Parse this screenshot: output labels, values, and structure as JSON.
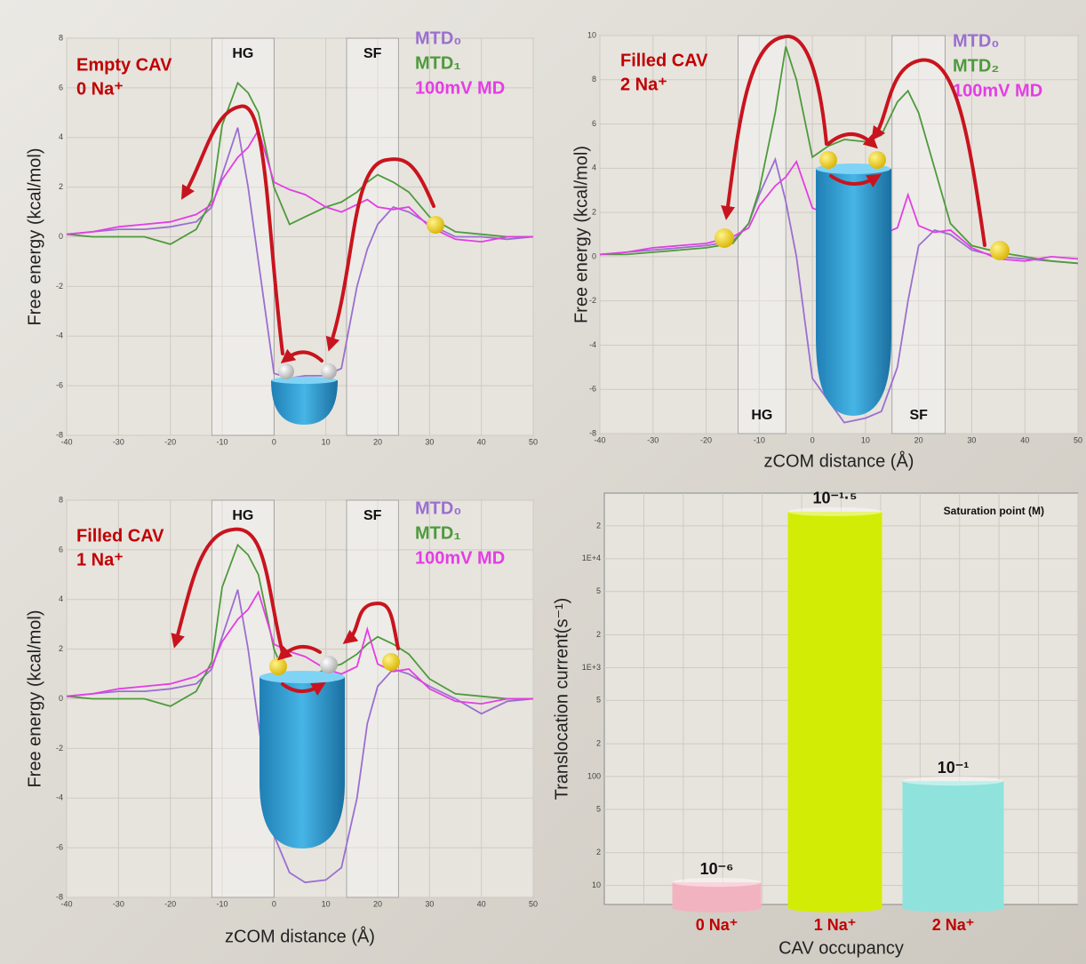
{
  "chart_data": [
    {
      "type": "line",
      "annotations": [
        "Empty CAV",
        "0 Na⁺"
      ],
      "y_label": "Free energy (kcal/mol)",
      "regions": [
        {
          "label": "HG",
          "range": [
            -12,
            0
          ]
        },
        {
          "label": "SF",
          "range": [
            14,
            24
          ]
        }
      ],
      "xlim": [
        -40,
        50
      ],
      "xticks": [
        -40,
        -30,
        -20,
        -10,
        0,
        10,
        20,
        30,
        40,
        50
      ],
      "ylim": [
        -8,
        8
      ],
      "yticks": [
        -8,
        -6,
        -4,
        -2,
        0,
        2,
        4,
        6,
        8
      ],
      "grid": true,
      "x": [
        -40,
        -35,
        -30,
        -25,
        -20,
        -15,
        -12,
        -10,
        -7,
        -5,
        -3,
        0,
        3,
        6,
        10,
        13,
        16,
        18,
        20,
        23,
        26,
        30,
        35,
        40,
        45,
        50
      ],
      "series": [
        {
          "name": "MTD₀",
          "color": "#9b6fd0",
          "values": [
            0.1,
            0.2,
            0.3,
            0.3,
            0.4,
            0.6,
            1.2,
            2.5,
            4.4,
            2,
            -1,
            -5.5,
            -5.7,
            -5.6,
            -5.6,
            -5.3,
            -2,
            -0.5,
            0.5,
            1.2,
            1,
            0.5,
            0,
            0,
            -0.1,
            0
          ]
        },
        {
          "name": "MTD₁",
          "color": "#4e9a3c",
          "values": [
            0.1,
            0,
            0,
            0,
            -0.3,
            0.3,
            1.5,
            4.5,
            6.2,
            5.8,
            5,
            2,
            0.5,
            0.8,
            1.2,
            1.4,
            1.8,
            2.2,
            2.5,
            2.2,
            1.8,
            0.8,
            0.2,
            0.1,
            0,
            0
          ]
        },
        {
          "name": "100mV  MD",
          "color": "#e33ee3",
          "values": [
            0.1,
            0.2,
            0.4,
            0.5,
            0.6,
            0.9,
            1.3,
            2.3,
            3.2,
            3.6,
            4.3,
            2.2,
            1.9,
            1.7,
            1.2,
            1.0,
            1.3,
            1.5,
            1.2,
            1.1,
            1.2,
            0.4,
            -0.1,
            -0.2,
            0,
            0
          ]
        }
      ]
    },
    {
      "type": "line",
      "annotations": [
        "Filled CAV",
        "2 Na⁺"
      ],
      "y_label": "Free energy (kcal/mol)",
      "x_label": "zCOM distance (Å)",
      "regions": [
        {
          "label": "HG",
          "range": [
            -14,
            -5
          ]
        },
        {
          "label": "SF",
          "range": [
            15,
            25
          ]
        }
      ],
      "xlim": [
        -40,
        50
      ],
      "xticks": [
        -40,
        -30,
        -20,
        -10,
        0,
        10,
        20,
        30,
        40,
        50
      ],
      "ylim": [
        -8,
        10
      ],
      "yticks": [
        -8,
        -6,
        -4,
        -2,
        0,
        2,
        4,
        6,
        8,
        10
      ],
      "grid": true,
      "x": [
        -40,
        -35,
        -30,
        -25,
        -20,
        -15,
        -12,
        -10,
        -7,
        -5,
        -3,
        0,
        3,
        6,
        10,
        13,
        16,
        18,
        20,
        23,
        26,
        30,
        35,
        40,
        45,
        50
      ],
      "series": [
        {
          "name": "MTD₀",
          "color": "#9b6fd0",
          "values": [
            0.1,
            0.2,
            0.3,
            0.4,
            0.5,
            0.7,
            1.5,
            2.8,
            4.4,
            2.5,
            0,
            -5.5,
            -6.5,
            -7.5,
            -7.3,
            -7,
            -5,
            -2,
            0.5,
            1.2,
            1,
            0.3,
            0,
            -0.1,
            -0.2,
            -0.3
          ]
        },
        {
          "name": "MTD₂",
          "color": "#4e9a3c",
          "values": [
            0.1,
            0.1,
            0.2,
            0.3,
            0.4,
            0.6,
            1.5,
            3,
            6.5,
            9.5,
            8,
            4.5,
            5,
            5.3,
            5.2,
            5.5,
            7,
            7.5,
            6.5,
            4,
            1.5,
            0.5,
            0.2,
            0,
            -0.2,
            -0.3
          ]
        },
        {
          "name": "100mV  MD",
          "color": "#e33ee3",
          "values": [
            0.1,
            0.2,
            0.4,
            0.5,
            0.6,
            0.9,
            1.3,
            2.3,
            3.2,
            3.6,
            4.3,
            2.2,
            1.9,
            1.7,
            1.2,
            1.0,
            1.3,
            2.8,
            1.4,
            1.1,
            1.2,
            0.4,
            -0.1,
            -0.2,
            0,
            -0.1
          ]
        }
      ]
    },
    {
      "type": "line",
      "annotations": [
        "Filled CAV",
        "1 Na⁺"
      ],
      "y_label": "Free energy (kcal/mol)",
      "x_label": "zCOM distance (Å)",
      "regions": [
        {
          "label": "HG",
          "range": [
            -12,
            0
          ]
        },
        {
          "label": "SF",
          "range": [
            14,
            24
          ]
        }
      ],
      "xlim": [
        -40,
        50
      ],
      "xticks": [
        -40,
        -30,
        -20,
        -10,
        0,
        10,
        20,
        30,
        40,
        50
      ],
      "ylim": [
        -8,
        8
      ],
      "yticks": [
        -8,
        -6,
        -4,
        -2,
        0,
        2,
        4,
        6,
        8
      ],
      "grid": true,
      "x": [
        -40,
        -35,
        -30,
        -25,
        -20,
        -15,
        -12,
        -10,
        -7,
        -5,
        -3,
        0,
        3,
        6,
        10,
        13,
        16,
        18,
        20,
        23,
        26,
        30,
        35,
        40,
        45,
        50
      ],
      "series": [
        {
          "name": "MTD₀",
          "color": "#9b6fd0",
          "values": [
            0.1,
            0.2,
            0.3,
            0.3,
            0.4,
            0.6,
            1.2,
            2.5,
            4.4,
            2,
            -1,
            -5.5,
            -7,
            -7.4,
            -7.3,
            -6.8,
            -4,
            -1,
            0.5,
            1.2,
            1,
            0.5,
            0,
            -0.6,
            -0.1,
            0
          ]
        },
        {
          "name": "MTD₁",
          "color": "#4e9a3c",
          "values": [
            0.1,
            0,
            0,
            0,
            -0.3,
            0.3,
            1.5,
            4.5,
            6.2,
            5.8,
            5,
            2,
            0.5,
            0.8,
            1.2,
            1.4,
            1.8,
            2.2,
            2.5,
            2.2,
            1.8,
            0.8,
            0.2,
            0.1,
            0,
            0
          ]
        },
        {
          "name": "100mV  MD",
          "color": "#e33ee3",
          "values": [
            0.1,
            0.2,
            0.4,
            0.5,
            0.6,
            0.9,
            1.3,
            2.3,
            3.2,
            3.6,
            4.3,
            2.2,
            1.9,
            1.7,
            1.2,
            1.0,
            1.3,
            2.8,
            1.4,
            1.1,
            1.2,
            0.4,
            -0.1,
            -0.2,
            0,
            0
          ]
        }
      ]
    },
    {
      "type": "bar",
      "log_scale": true,
      "note": "Saturation point (M)",
      "y_label": "Translocation current(s⁻¹)",
      "x_label": "CAV occupancy",
      "categories": [
        "0 Na⁺",
        "1 Na⁺",
        "2 Na⁺"
      ],
      "values": [
        10.7,
        27000,
        91
      ],
      "colors": [
        "#f2b3c0",
        "#d3ec06",
        "#8fe3dc"
      ],
      "bar_annotations": [
        "10⁻⁶",
        "10⁻¹·⁵",
        "10⁻¹"
      ],
      "ylim": [
        6.7,
        40000
      ],
      "grid": true,
      "yticks": [
        10,
        {
          "value": 20,
          "label": "2"
        },
        {
          "value": 50,
          "label": "5"
        },
        100,
        {
          "value": 200,
          "label": "2"
        },
        {
          "value": 500,
          "label": "5"
        },
        {
          "value": 1000,
          "label": "1E+3"
        },
        {
          "value": 2000,
          "label": "2"
        },
        {
          "value": 5000,
          "label": "5"
        },
        {
          "value": 10000,
          "label": "1E+4"
        },
        {
          "value": 20000,
          "label": "2"
        }
      ]
    }
  ]
}
